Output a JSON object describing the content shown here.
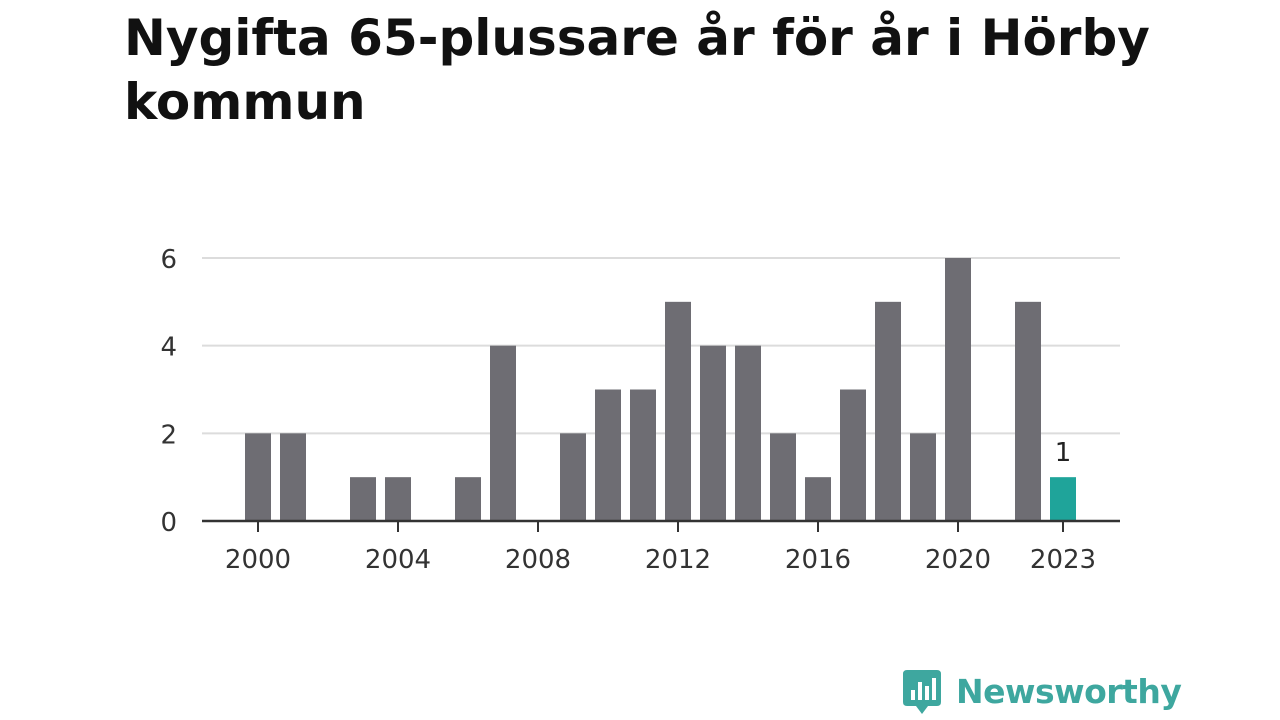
{
  "title": "Nygifta 65-plussare år för år i Hörby kommun",
  "brand": {
    "name": "Newsworthy",
    "icon": "bar-chart-speech-bubble-icon",
    "color": "#3ea79f"
  },
  "chart_data": {
    "type": "bar",
    "title": "Nygifta 65-plussare år för år i Hörby kommun",
    "xlabel": "",
    "ylabel": "",
    "x": [
      2000,
      2001,
      2002,
      2003,
      2004,
      2005,
      2006,
      2007,
      2008,
      2009,
      2010,
      2011,
      2012,
      2013,
      2014,
      2015,
      2016,
      2017,
      2018,
      2019,
      2020,
      2021,
      2022,
      2023
    ],
    "values": [
      2,
      2,
      0,
      1,
      1,
      0,
      1,
      4,
      0,
      2,
      3,
      3,
      5,
      4,
      4,
      2,
      1,
      3,
      5,
      2,
      6,
      0,
      5,
      1
    ],
    "ylim": [
      0,
      6
    ],
    "yticks": [
      "0",
      "2",
      "4",
      "6"
    ],
    "xticks": [
      "2000",
      "2004",
      "2008",
      "2012",
      "2016",
      "2020",
      "2023"
    ],
    "grid": true,
    "bar_color": "#6e6d73",
    "highlight_color": "#1fa49a",
    "highlight_index": 23,
    "data_labels": [
      {
        "index": 23,
        "text": "1"
      }
    ]
  }
}
